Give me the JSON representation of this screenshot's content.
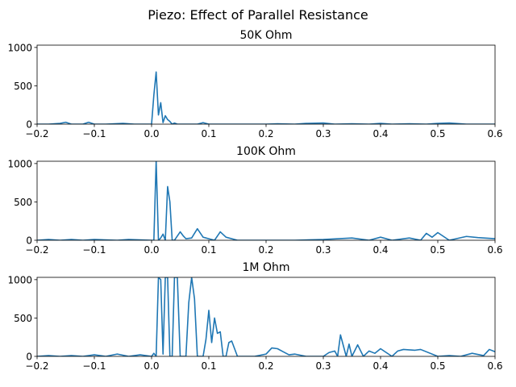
{
  "figure": {
    "suptitle": "Piezo: Effect of Parallel Resistance"
  },
  "colors": {
    "line": "#1f77b4",
    "axes": "#000000",
    "background": "#ffffff"
  },
  "chart_data": [
    {
      "type": "line",
      "title": "50K Ohm",
      "xlabel": "",
      "ylabel": "",
      "xlim": [
        -0.2,
        0.6
      ],
      "ylim": [
        0,
        1030
      ],
      "xticks": [
        -0.2,
        -0.1,
        0.0,
        0.1,
        0.2,
        0.3,
        0.4,
        0.5,
        0.6
      ],
      "xtick_labels": [
        "−0.2",
        "−0.1",
        "0.0",
        "0.1",
        "0.2",
        "0.3",
        "0.4",
        "0.5",
        "0.6"
      ],
      "yticks": [
        0,
        500,
        1000
      ],
      "ytick_labels": [
        "0",
        "500",
        "1000"
      ],
      "grid": false,
      "series": [
        {
          "x": [
            -0.2,
            -0.18,
            -0.16,
            -0.15,
            -0.14,
            -0.12,
            -0.11,
            -0.1,
            -0.08,
            -0.05,
            -0.03,
            0.0,
            0.004,
            0.008,
            0.012,
            0.016,
            0.02,
            0.024,
            0.028,
            0.032,
            0.036,
            0.04,
            0.045,
            0.05,
            0.06,
            0.08,
            0.09,
            0.1,
            0.15,
            0.2,
            0.22,
            0.25,
            0.27,
            0.3,
            0.32,
            0.35,
            0.38,
            0.4,
            0.42,
            0.45,
            0.48,
            0.5,
            0.52,
            0.55,
            0.58,
            0.6
          ],
          "y": [
            0,
            0,
            10,
            25,
            0,
            0,
            25,
            0,
            0,
            10,
            0,
            0,
            380,
            680,
            120,
            280,
            20,
            110,
            60,
            35,
            0,
            15,
            0,
            0,
            0,
            0,
            20,
            0,
            0,
            0,
            5,
            0,
            10,
            15,
            0,
            5,
            0,
            10,
            0,
            5,
            0,
            10,
            15,
            0,
            0,
            0
          ]
        }
      ]
    },
    {
      "type": "line",
      "title": "100K Ohm",
      "xlabel": "",
      "ylabel": "",
      "xlim": [
        -0.2,
        0.6
      ],
      "ylim": [
        0,
        1030
      ],
      "xticks": [
        -0.2,
        -0.1,
        0.0,
        0.1,
        0.2,
        0.3,
        0.4,
        0.5,
        0.6
      ],
      "xtick_labels": [
        "−0.2",
        "−0.1",
        "0.0",
        "0.1",
        "0.2",
        "0.3",
        "0.4",
        "0.5",
        "0.6"
      ],
      "yticks": [
        0,
        500,
        1000
      ],
      "ytick_labels": [
        "0",
        "500",
        "1000"
      ],
      "grid": false,
      "series": [
        {
          "x": [
            -0.2,
            -0.18,
            -0.16,
            -0.14,
            -0.12,
            -0.1,
            -0.08,
            -0.06,
            -0.04,
            0.0,
            0.004,
            0.008,
            0.012,
            0.016,
            0.02,
            0.024,
            0.028,
            0.032,
            0.036,
            0.04,
            0.05,
            0.055,
            0.06,
            0.07,
            0.08,
            0.09,
            0.1,
            0.11,
            0.12,
            0.13,
            0.15,
            0.2,
            0.25,
            0.3,
            0.35,
            0.38,
            0.4,
            0.42,
            0.45,
            0.47,
            0.48,
            0.49,
            0.5,
            0.52,
            0.55,
            0.57,
            0.6
          ],
          "y": [
            0,
            10,
            0,
            10,
            0,
            10,
            5,
            0,
            10,
            0,
            0,
            1040,
            0,
            30,
            80,
            0,
            700,
            500,
            0,
            0,
            110,
            60,
            20,
            30,
            150,
            40,
            20,
            0,
            110,
            40,
            0,
            0,
            0,
            10,
            30,
            0,
            40,
            0,
            30,
            0,
            90,
            40,
            100,
            0,
            50,
            35,
            20
          ]
        }
      ]
    },
    {
      "type": "line",
      "title": "1M Ohm",
      "xlabel": "",
      "ylabel": "",
      "xlim": [
        -0.2,
        0.6
      ],
      "ylim": [
        0,
        1030
      ],
      "xticks": [
        -0.2,
        -0.1,
        0.0,
        0.1,
        0.2,
        0.3,
        0.4,
        0.5,
        0.6
      ],
      "xtick_labels": [
        "−0.2",
        "−0.1",
        "0.0",
        "0.1",
        "0.2",
        "0.3",
        "0.4",
        "0.5",
        "0.6"
      ],
      "yticks": [
        0,
        500,
        1000
      ],
      "ytick_labels": [
        "0",
        "500",
        "1000"
      ],
      "grid": false,
      "series": [
        {
          "x": [
            -0.2,
            -0.18,
            -0.16,
            -0.14,
            -0.12,
            -0.1,
            -0.08,
            -0.06,
            -0.04,
            -0.02,
            0.0,
            0.004,
            0.008,
            0.012,
            0.016,
            0.02,
            0.024,
            0.028,
            0.032,
            0.036,
            0.04,
            0.045,
            0.05,
            0.055,
            0.06,
            0.065,
            0.07,
            0.075,
            0.08,
            0.085,
            0.09,
            0.095,
            0.1,
            0.105,
            0.11,
            0.115,
            0.12,
            0.125,
            0.13,
            0.135,
            0.14,
            0.145,
            0.15,
            0.16,
            0.18,
            0.2,
            0.21,
            0.22,
            0.23,
            0.24,
            0.25,
            0.27,
            0.3,
            0.31,
            0.32,
            0.325,
            0.33,
            0.34,
            0.345,
            0.35,
            0.36,
            0.37,
            0.38,
            0.39,
            0.4,
            0.42,
            0.43,
            0.44,
            0.46,
            0.47,
            0.5,
            0.52,
            0.54,
            0.56,
            0.58,
            0.59,
            0.6
          ],
          "y": [
            0,
            10,
            0,
            10,
            0,
            20,
            0,
            30,
            0,
            20,
            0,
            40,
            0,
            1030,
            1000,
            30,
            1030,
            1030,
            0,
            0,
            1030,
            1030,
            0,
            0,
            0,
            700,
            1030,
            750,
            0,
            0,
            0,
            220,
            600,
            180,
            500,
            300,
            320,
            0,
            0,
            180,
            200,
            100,
            0,
            0,
            0,
            30,
            110,
            100,
            60,
            20,
            30,
            0,
            0,
            50,
            70,
            0,
            280,
            0,
            160,
            0,
            150,
            0,
            70,
            40,
            100,
            0,
            70,
            90,
            80,
            90,
            0,
            10,
            0,
            40,
            10,
            90,
            60
          ]
        }
      ]
    }
  ]
}
